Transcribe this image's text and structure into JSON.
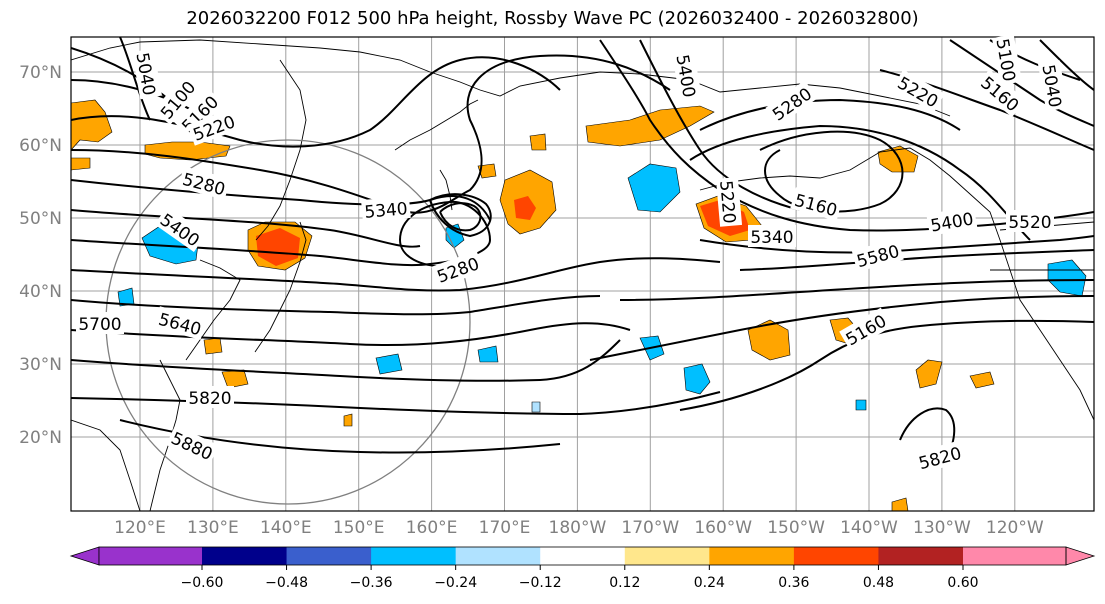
{
  "title": "2026032200 F012 500 hPa height, Rossby Wave PC (2026032400 - 2026032800)",
  "latitude_labels": [
    "70°N",
    "60°N",
    "50°N",
    "40°N",
    "30°N",
    "20°N"
  ],
  "longitude_labels": [
    "120°E",
    "130°E",
    "140°E",
    "150°E",
    "160°E",
    "170°E",
    "180°W",
    "170°W",
    "160°W",
    "150°W",
    "140°W",
    "130°W",
    "120°W"
  ],
  "contour_labels": [
    {
      "text": "5040"
    },
    {
      "text": "5100"
    },
    {
      "text": "5160"
    },
    {
      "text": "5220"
    },
    {
      "text": "5280"
    },
    {
      "text": "5400"
    },
    {
      "text": "5340"
    },
    {
      "text": "5280"
    },
    {
      "text": "5700"
    },
    {
      "text": "5640"
    },
    {
      "text": "5820"
    },
    {
      "text": "5880"
    },
    {
      "text": "5400"
    },
    {
      "text": "5280"
    },
    {
      "text": "5220"
    },
    {
      "text": "5160"
    },
    {
      "text": "5220"
    },
    {
      "text": "5340"
    },
    {
      "text": "5580"
    },
    {
      "text": "5400"
    },
    {
      "text": "5520"
    },
    {
      "text": "5160"
    },
    {
      "text": "5820"
    },
    {
      "text": "5160"
    },
    {
      "text": "5100"
    },
    {
      "text": "5040"
    }
  ],
  "colorbar": {
    "ticks": [
      "−0.60",
      "−0.48",
      "−0.36",
      "−0.24",
      "−0.12",
      "0.12",
      "0.24",
      "0.36",
      "0.48",
      "0.60"
    ],
    "colors": [
      "#9932cc",
      "#00008b",
      "#3a5fcd",
      "#00bfff",
      "#b0e2ff",
      "#ffffff",
      "#ffe78c",
      "#ffa500",
      "#ff4500",
      "#b22222",
      "#ff88aa"
    ]
  },
  "fill_colors": {
    "orange": "#ffa500",
    "red": "#ff4500",
    "yellow": "#ffe78c",
    "blue": "#00bfff",
    "lightblue": "#b0e2ff"
  }
}
